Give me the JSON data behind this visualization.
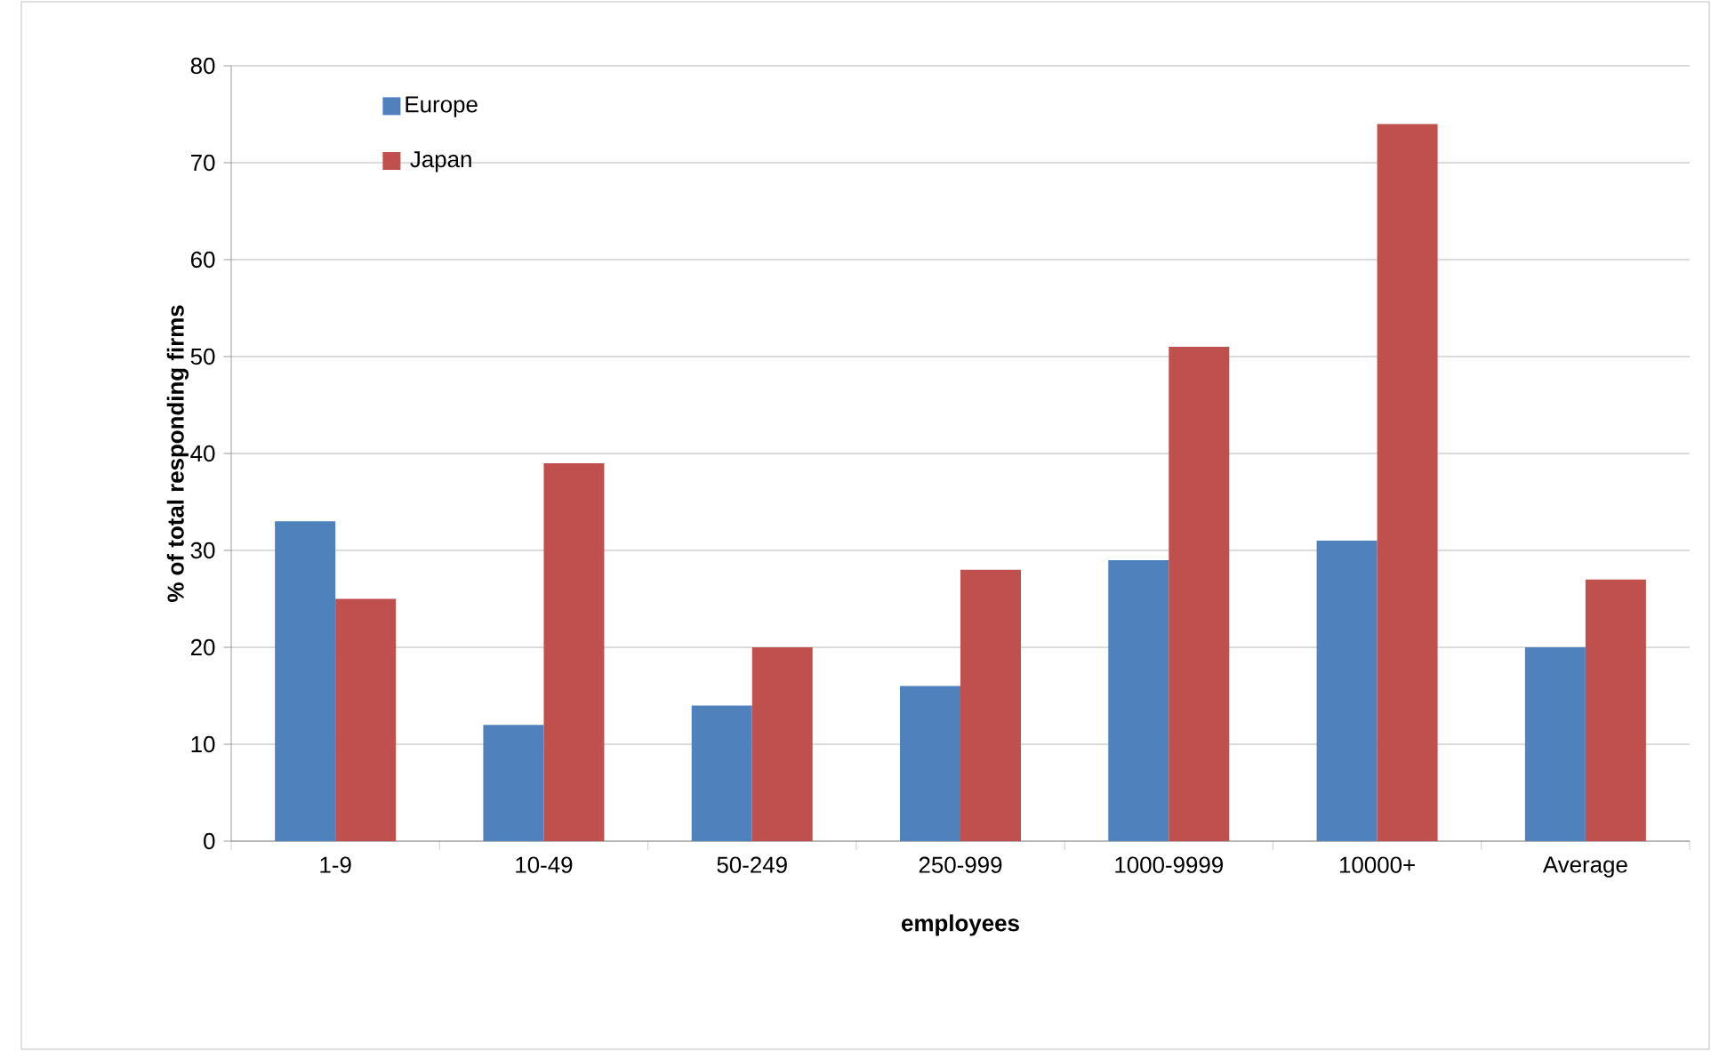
{
  "chart_data": {
    "type": "bar",
    "xlabel": "employees",
    "ylabel": "% of total responding firms",
    "categories": [
      "1-9",
      "10-49",
      "50-249",
      "250-999",
      "1000-9999",
      "10000+",
      "Average"
    ],
    "series": [
      {
        "name": "Europe",
        "color": "#4f81bd",
        "values": [
          33,
          12,
          14,
          16,
          29,
          31,
          20
        ]
      },
      {
        "name": "Japan",
        "color": "#c0504d",
        "values": [
          25,
          39,
          20,
          28,
          51,
          74,
          27
        ]
      }
    ],
    "ylim": [
      0,
      80
    ],
    "yticks": [
      0,
      10,
      20,
      30,
      40,
      50,
      60,
      70,
      80
    ],
    "grid": "y",
    "legend": "top left"
  }
}
